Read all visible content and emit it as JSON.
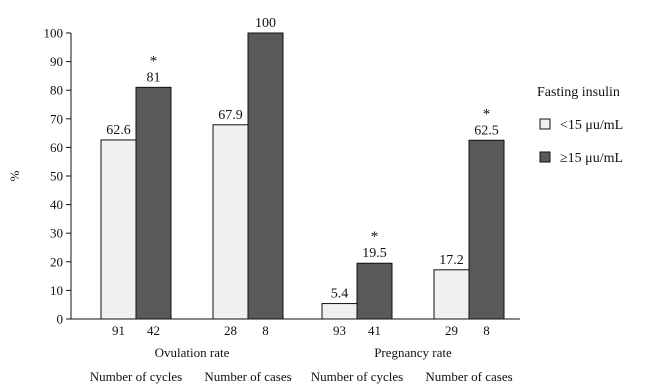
{
  "chart_data": {
    "type": "bar",
    "ylabel": "%",
    "ylim": [
      0,
      100
    ],
    "yticks": [
      0,
      10,
      20,
      30,
      40,
      50,
      60,
      70,
      80,
      90,
      100
    ],
    "legend": {
      "title": "Fasting insulin",
      "placement": "right"
    },
    "series": [
      {
        "name": "<15 μu/mL",
        "color": "#f0f0f0"
      },
      {
        "name": "≥15 μu/mL",
        "color": "#595959"
      }
    ],
    "groups": [
      {
        "bottom_label": "Number of cycles",
        "values": [
          62.6,
          81
        ],
        "labels": [
          "62.6",
          "81"
        ],
        "counts": [
          "91",
          "42"
        ],
        "significant": [
          false,
          true
        ]
      },
      {
        "bottom_label": "Number of cases",
        "values": [
          67.9,
          100
        ],
        "labels": [
          "67.9",
          "100"
        ],
        "counts": [
          "28",
          "8"
        ],
        "significant": [
          false,
          false
        ]
      },
      {
        "bottom_label": "Number of cycles",
        "values": [
          5.4,
          19.5
        ],
        "labels": [
          "5.4",
          "19.5"
        ],
        "counts": [
          "93",
          "41"
        ],
        "significant": [
          false,
          true
        ]
      },
      {
        "bottom_label": "Number of cases",
        "values": [
          17.2,
          62.5
        ],
        "labels": [
          "17.2",
          "62.5"
        ],
        "counts": [
          "29",
          "8"
        ],
        "significant": [
          false,
          true
        ]
      }
    ],
    "categories": [
      {
        "label": "Ovulation rate",
        "groups": [
          0,
          1
        ]
      },
      {
        "label": "Pregnancy rate",
        "groups": [
          2,
          3
        ]
      }
    ],
    "significance_marker": "*"
  }
}
